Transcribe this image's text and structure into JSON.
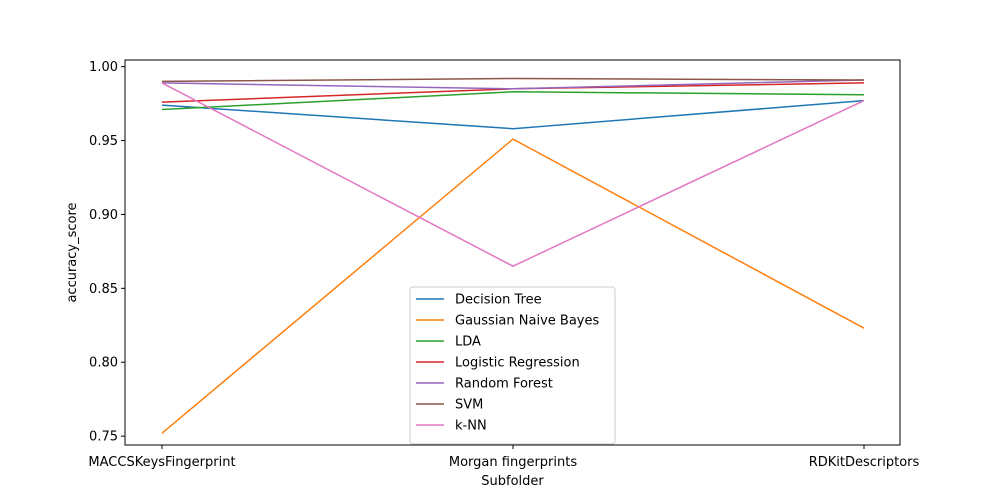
{
  "chart_data": {
    "type": "line",
    "title": "",
    "xlabel": "Subfolder",
    "ylabel": "accuracy_score",
    "categories": [
      "MACCSKeysFingerprint",
      "Morgan fingerprints",
      "RDKitDescriptors"
    ],
    "ylim": [
      0.744,
      1.0045
    ],
    "yticks": [
      "0.75",
      "0.80",
      "0.85",
      "0.90",
      "0.95",
      "1.00"
    ],
    "grid": false,
    "legend_position": "lower-center",
    "series": [
      {
        "name": "Decision Tree",
        "color": "#1f77b4",
        "values": [
          0.974,
          0.958,
          0.977
        ]
      },
      {
        "name": "Gaussian Naive Bayes",
        "color": "#ff7f0e",
        "values": [
          0.752,
          0.951,
          0.823
        ]
      },
      {
        "name": "LDA",
        "color": "#2ca02c",
        "values": [
          0.971,
          0.983,
          0.981
        ]
      },
      {
        "name": "Logistic Regression",
        "color": "#d62728",
        "values": [
          0.976,
          0.985,
          0.989
        ]
      },
      {
        "name": "Random Forest",
        "color": "#9467bd",
        "values": [
          0.989,
          0.985,
          0.991
        ]
      },
      {
        "name": "SVM",
        "color": "#8c564b",
        "values": [
          0.99,
          0.992,
          0.991
        ]
      },
      {
        "name": "k-NN",
        "color": "#e377c2",
        "values": [
          0.989,
          0.865,
          0.977
        ]
      }
    ]
  }
}
